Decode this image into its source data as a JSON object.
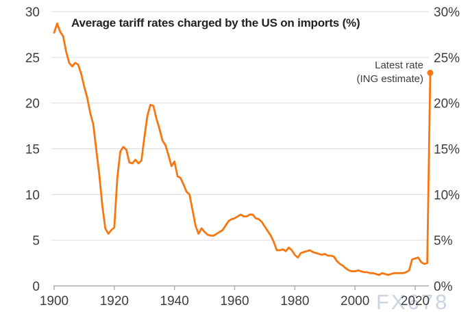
{
  "title": "Average tariff rates charged by the US on imports (%)",
  "annotation": {
    "line1": "Latest rate",
    "line2": "(ING estimate)"
  },
  "watermark": "FX678",
  "colors": {
    "line": "#f8760f",
    "marker": "#f8760f",
    "grid": "#dcdcdc",
    "axis": "#ababab",
    "tick_text": "#3d3d3d",
    "title_text": "#222222",
    "annotation_text": "#3d3d3d",
    "watermark_text": "#c9d3e1",
    "background": "#ffffff"
  },
  "axes": {
    "left_ticks": [
      "30",
      "25",
      "20",
      "15",
      "10",
      "5",
      "0"
    ],
    "right_ticks": [
      "30%",
      "25%",
      "20%",
      "15%",
      "10%",
      "5%",
      "0%"
    ],
    "x_ticks": [
      "1900",
      "1920",
      "1940",
      "1960",
      "1980",
      "2000",
      "2020"
    ]
  },
  "chart_data": {
    "type": "line",
    "title": "Average tariff rates charged by the US on imports (%)",
    "xlabel": "",
    "ylabel": "",
    "xlim": [
      1900,
      2026
    ],
    "ylim": [
      0,
      30
    ],
    "grid": "horizontal",
    "legend": "none",
    "y_tick_values": [
      0,
      5,
      10,
      15,
      20,
      25,
      30
    ],
    "x_tick_values": [
      1900,
      1920,
      1940,
      1960,
      1980,
      2000,
      2020
    ],
    "series_name": "US average tariff rate on imports (%)",
    "x": [
      1900,
      1901,
      1902,
      1903,
      1904,
      1905,
      1906,
      1907,
      1908,
      1909,
      1910,
      1911,
      1912,
      1913,
      1914,
      1915,
      1916,
      1917,
      1918,
      1919,
      1920,
      1921,
      1922,
      1923,
      1924,
      1925,
      1926,
      1927,
      1928,
      1929,
      1930,
      1931,
      1932,
      1933,
      1934,
      1935,
      1936,
      1937,
      1938,
      1939,
      1940,
      1941,
      1942,
      1943,
      1944,
      1945,
      1946,
      1947,
      1948,
      1949,
      1950,
      1951,
      1952,
      1953,
      1954,
      1955,
      1956,
      1957,
      1958,
      1959,
      1960,
      1961,
      1962,
      1963,
      1964,
      1965,
      1966,
      1967,
      1968,
      1969,
      1970,
      1971,
      1972,
      1973,
      1974,
      1975,
      1976,
      1977,
      1978,
      1979,
      1980,
      1981,
      1982,
      1983,
      1984,
      1985,
      1986,
      1987,
      1988,
      1989,
      1990,
      1991,
      1992,
      1993,
      1994,
      1995,
      1996,
      1997,
      1998,
      1999,
      2000,
      2001,
      2002,
      2003,
      2004,
      2005,
      2006,
      2007,
      2008,
      2009,
      2010,
      2011,
      2012,
      2013,
      2014,
      2015,
      2016,
      2017,
      2018,
      2019,
      2020,
      2021,
      2022,
      2023,
      2024,
      2025
    ],
    "values": [
      27.7,
      28.7,
      27.8,
      27.3,
      25.6,
      24.4,
      24.0,
      24.4,
      24.2,
      23.2,
      21.8,
      20.6,
      18.9,
      17.7,
      14.9,
      12.2,
      8.8,
      6.3,
      5.7,
      6.1,
      6.4,
      11.8,
      14.7,
      15.2,
      14.9,
      13.5,
      13.4,
      13.8,
      13.4,
      13.7,
      16.3,
      18.6,
      19.8,
      19.7,
      18.3,
      17.2,
      15.9,
      15.4,
      14.3,
      13.1,
      13.6,
      12.0,
      11.8,
      11.1,
      10.3,
      10.0,
      8.3,
      6.6,
      5.7,
      6.3,
      5.9,
      5.6,
      5.5,
      5.5,
      5.7,
      5.9,
      6.1,
      6.6,
      7.1,
      7.3,
      7.4,
      7.6,
      7.8,
      7.6,
      7.6,
      7.8,
      7.8,
      7.4,
      7.3,
      7.0,
      6.5,
      6.0,
      5.5,
      4.8,
      3.9,
      3.9,
      4.0,
      3.8,
      4.2,
      3.9,
      3.4,
      3.1,
      3.6,
      3.7,
      3.8,
      3.9,
      3.7,
      3.6,
      3.5,
      3.4,
      3.5,
      3.3,
      3.3,
      3.2,
      2.7,
      2.4,
      2.2,
      1.9,
      1.7,
      1.6,
      1.6,
      1.7,
      1.6,
      1.5,
      1.5,
      1.4,
      1.4,
      1.3,
      1.2,
      1.4,
      1.3,
      1.2,
      1.3,
      1.4,
      1.4,
      1.4,
      1.4,
      1.5,
      1.7,
      2.9,
      3.0,
      3.1,
      2.6,
      2.4,
      2.5,
      23.3
    ],
    "annotations": [
      {
        "text": "Latest rate (ING estimate)",
        "x": 2025,
        "y": 23.3,
        "marker": "dot"
      }
    ]
  }
}
